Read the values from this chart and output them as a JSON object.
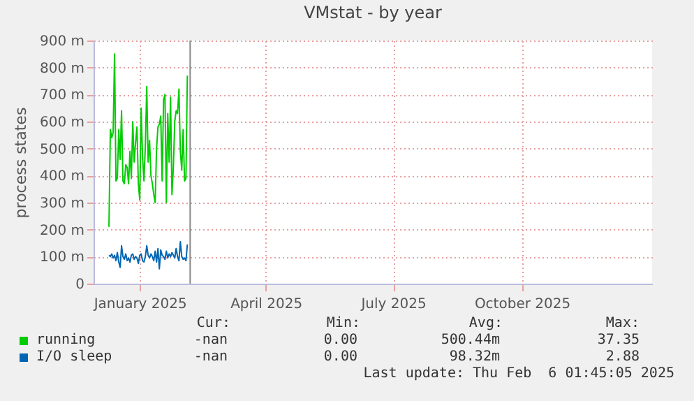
{
  "chart_data": {
    "type": "line",
    "title": "VMstat - by year",
    "ylabel": "process states",
    "x": [
      "2024-12-10",
      "2024-12-11",
      "2024-12-12",
      "2024-12-13",
      "2024-12-14",
      "2024-12-15",
      "2024-12-16",
      "2024-12-17",
      "2024-12-18",
      "2024-12-19",
      "2024-12-20",
      "2024-12-21",
      "2024-12-22",
      "2024-12-23",
      "2024-12-24",
      "2024-12-25",
      "2024-12-26",
      "2024-12-27",
      "2024-12-28",
      "2024-12-29",
      "2024-12-30",
      "2024-12-31",
      "2025-01-01",
      "2025-01-02",
      "2025-01-03",
      "2025-01-04",
      "2025-01-05",
      "2025-01-06",
      "2025-01-07",
      "2025-01-08",
      "2025-01-09",
      "2025-01-10",
      "2025-01-11",
      "2025-01-12",
      "2025-01-13",
      "2025-01-14",
      "2025-01-15",
      "2025-01-16",
      "2025-01-17",
      "2025-01-18",
      "2025-01-19",
      "2025-01-20",
      "2025-01-21",
      "2025-01-22",
      "2025-01-23",
      "2025-01-24",
      "2025-01-25",
      "2025-01-26",
      "2025-01-27",
      "2025-01-28",
      "2025-01-29",
      "2025-01-30",
      "2025-01-31",
      "2025-02-01",
      "2025-02-02",
      "2025-02-03",
      "2025-02-04"
    ],
    "series": [
      {
        "name": "running",
        "color": "#00cc00",
        "values": [
          210,
          570,
          540,
          560,
          850,
          380,
          390,
          570,
          460,
          640,
          380,
          370,
          440,
          430,
          370,
          490,
          390,
          600,
          450,
          520,
          580,
          370,
          310,
          650,
          470,
          380,
          510,
          730,
          450,
          530,
          400,
          370,
          330,
          300,
          500,
          580,
          590,
          620,
          380,
          680,
          700,
          300,
          630,
          450,
          690,
          330,
          430,
          600,
          640,
          630,
          720,
          490,
          420,
          570,
          380,
          390,
          770
        ]
      },
      {
        "name": "I/O sleep",
        "color": "#0066b3",
        "values": [
          105,
          100,
          110,
          95,
          105,
          85,
          115,
          80,
          60,
          140,
          100,
          90,
          110,
          85,
          95,
          80,
          105,
          110,
          90,
          100,
          95,
          75,
          105,
          110,
          85,
          80,
          100,
          140,
          105,
          95,
          110,
          100,
          85,
          120,
          80,
          130,
          55,
          125,
          105,
          100,
          90,
          120,
          95,
          110,
          100,
          115,
          105,
          95,
          130,
          100,
          85,
          155,
          100,
          90,
          95,
          85,
          145
        ]
      }
    ],
    "xlim": [
      "2024-11-29",
      "2026-01-02"
    ],
    "xticks": [
      {
        "value": "2025-01-01",
        "label": "January 2025"
      },
      {
        "value": "2025-04-01",
        "label": "April 2025"
      },
      {
        "value": "2025-07-01",
        "label": "July 2025"
      },
      {
        "value": "2025-10-01",
        "label": "October 2025"
      }
    ],
    "ylim": [
      0,
      900
    ],
    "yticks": [
      0,
      {
        "value": 100,
        "label": "100 m"
      },
      {
        "value": 200,
        "label": "200 m"
      },
      {
        "value": 300,
        "label": "300 m"
      },
      {
        "value": 400,
        "label": "400 m"
      },
      {
        "value": 500,
        "label": "500 m"
      },
      {
        "value": 600,
        "label": "600 m"
      },
      {
        "value": 700,
        "label": "700 m"
      },
      {
        "value": 800,
        "label": "800 m"
      },
      {
        "value": 900,
        "label": "900 m"
      }
    ],
    "ref_lines": [
      {
        "axis": "x",
        "value": "2025-02-06",
        "color": "#888888"
      }
    ],
    "grid": true,
    "legend": "bottom",
    "marker": "none",
    "line_style": "solid",
    "annotations": [
      "Cur:",
      "Min:",
      "Avg:",
      "Max:",
      "-nan",
      "0.00",
      "500.44m",
      "37.35",
      "-nan",
      "0.00",
      "98.32m",
      "2.88",
      "Last update: Thu Feb  6 01:45:05 2025"
    ]
  }
}
